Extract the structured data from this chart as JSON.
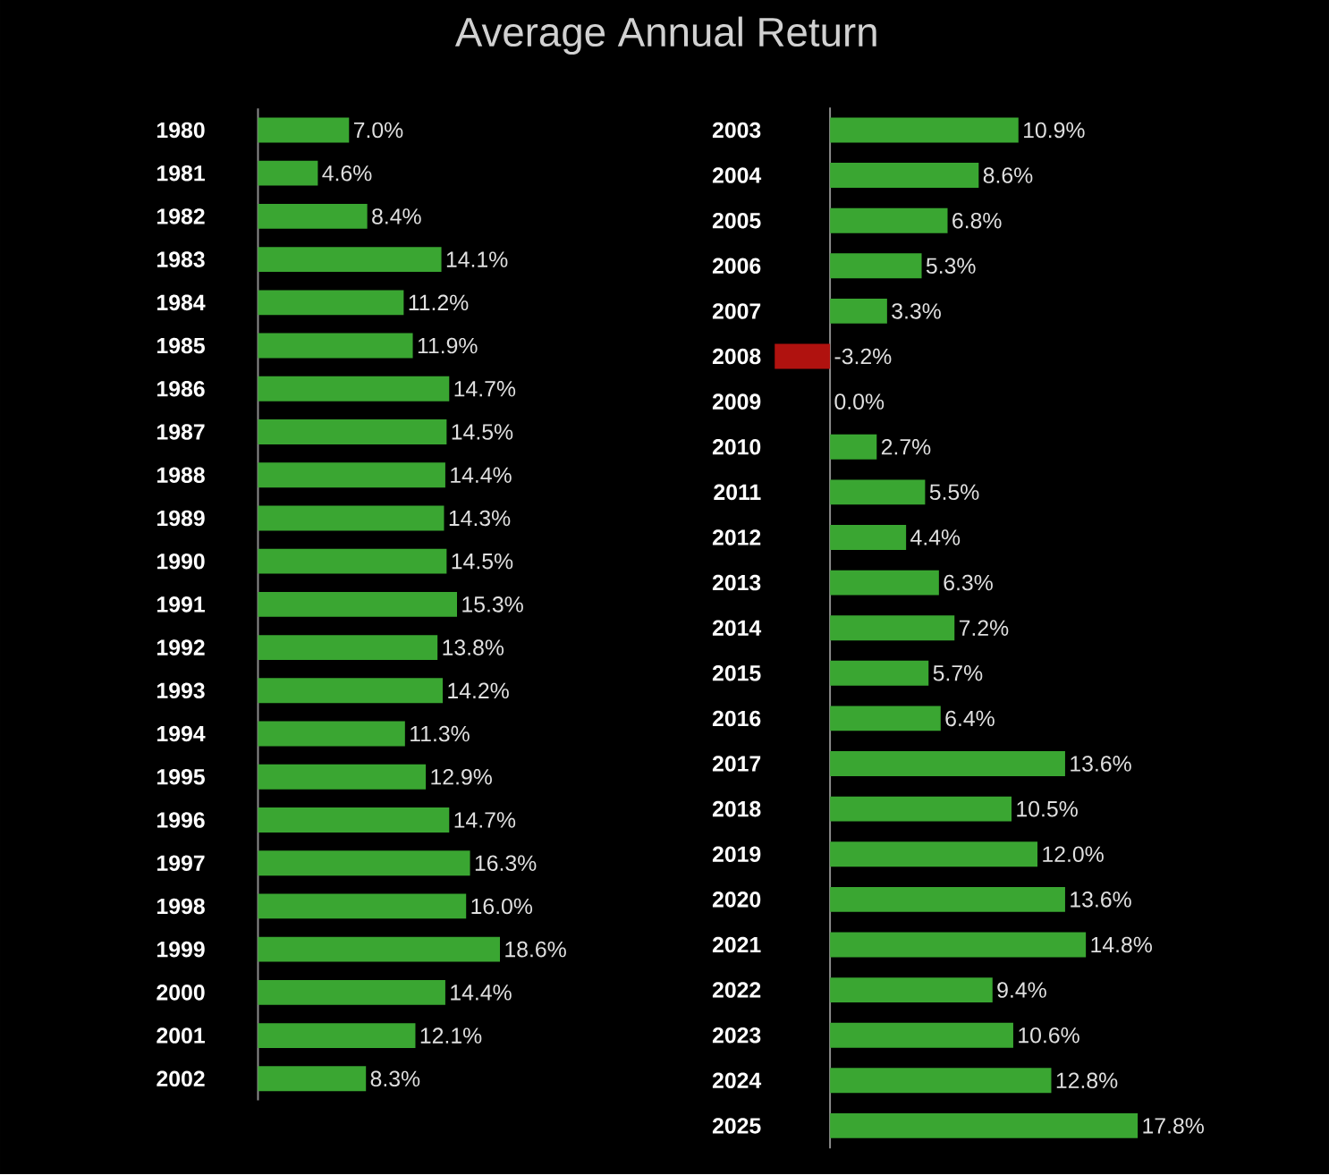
{
  "chart_data": [
    {
      "type": "bar",
      "orientation": "horizontal",
      "title": "Average Annual Return",
      "categories": [
        "1980",
        "1981",
        "1982",
        "1983",
        "1984",
        "1985",
        "1986",
        "1987",
        "1988",
        "1989",
        "1990",
        "1991",
        "1992",
        "1993",
        "1994",
        "1995",
        "1996",
        "1997",
        "1998",
        "1999",
        "2000",
        "2001",
        "2002"
      ],
      "values": [
        7.0,
        4.6,
        8.4,
        14.1,
        11.2,
        11.9,
        14.7,
        14.5,
        14.4,
        14.3,
        14.5,
        15.3,
        13.8,
        14.2,
        11.3,
        12.9,
        14.7,
        16.3,
        16.0,
        18.6,
        14.4,
        12.1,
        8.3
      ],
      "value_labels": [
        "7.0%",
        "4.6%",
        "8.4%",
        "14.1%",
        "11.2%",
        "11.9%",
        "14.7%",
        "14.5%",
        "14.4%",
        "14.3%",
        "14.5%",
        "15.3%",
        "13.8%",
        "14.2%",
        "11.3%",
        "12.9%",
        "14.7%",
        "16.3%",
        "16.0%",
        "18.6%",
        "14.4%",
        "12.1%",
        "8.3%"
      ],
      "colors": [
        "#3aa632",
        "#3aa632",
        "#3aa632",
        "#3aa632",
        "#3aa632",
        "#3aa632",
        "#3aa632",
        "#3aa632",
        "#3aa632",
        "#3aa632",
        "#3aa632",
        "#3aa632",
        "#3aa632",
        "#3aa632",
        "#3aa632",
        "#3aa632",
        "#3aa632",
        "#3aa632",
        "#3aa632",
        "#3aa632",
        "#3aa632",
        "#3aa632",
        "#3aa632"
      ]
    },
    {
      "type": "bar",
      "orientation": "horizontal",
      "categories": [
        "2003",
        "2004",
        "2005",
        "2006",
        "2007",
        "2008",
        "2009",
        "2010",
        "2011",
        "2012",
        "2013",
        "2014",
        "2015",
        "2016",
        "2017",
        "2018",
        "2019",
        "2020",
        "2021",
        "2022",
        "2023",
        "2024",
        "2025"
      ],
      "values": [
        10.9,
        8.6,
        6.8,
        5.3,
        3.3,
        -3.2,
        0.0,
        2.7,
        5.5,
        4.4,
        6.3,
        7.2,
        5.7,
        6.4,
        13.6,
        10.5,
        12.0,
        13.6,
        14.8,
        9.4,
        10.6,
        12.8,
        17.8
      ],
      "value_labels": [
        "10.9%",
        "8.6%",
        "6.8%",
        "5.3%",
        "3.3%",
        "-3.2%",
        "0.0%",
        "2.7%",
        "5.5%",
        "4.4%",
        "6.3%",
        "7.2%",
        "5.7%",
        "6.4%",
        "13.6%",
        "10.5%",
        "12.0%",
        "13.6%",
        "14.8%",
        "9.4%",
        "10.6%",
        "12.8%",
        "17.8%"
      ],
      "colors": [
        "#3aa632",
        "#3aa632",
        "#3aa632",
        "#3aa632",
        "#3aa632",
        "#b0120f",
        "#3aa632",
        "#3aa632",
        "#3aa632",
        "#3aa632",
        "#3aa632",
        "#3aa632",
        "#3aa632",
        "#3aa632",
        "#3aa632",
        "#3aa632",
        "#3aa632",
        "#3aa632",
        "#3aa632",
        "#3aa632",
        "#3aa632",
        "#3aa632",
        "#3aa632"
      ]
    }
  ]
}
